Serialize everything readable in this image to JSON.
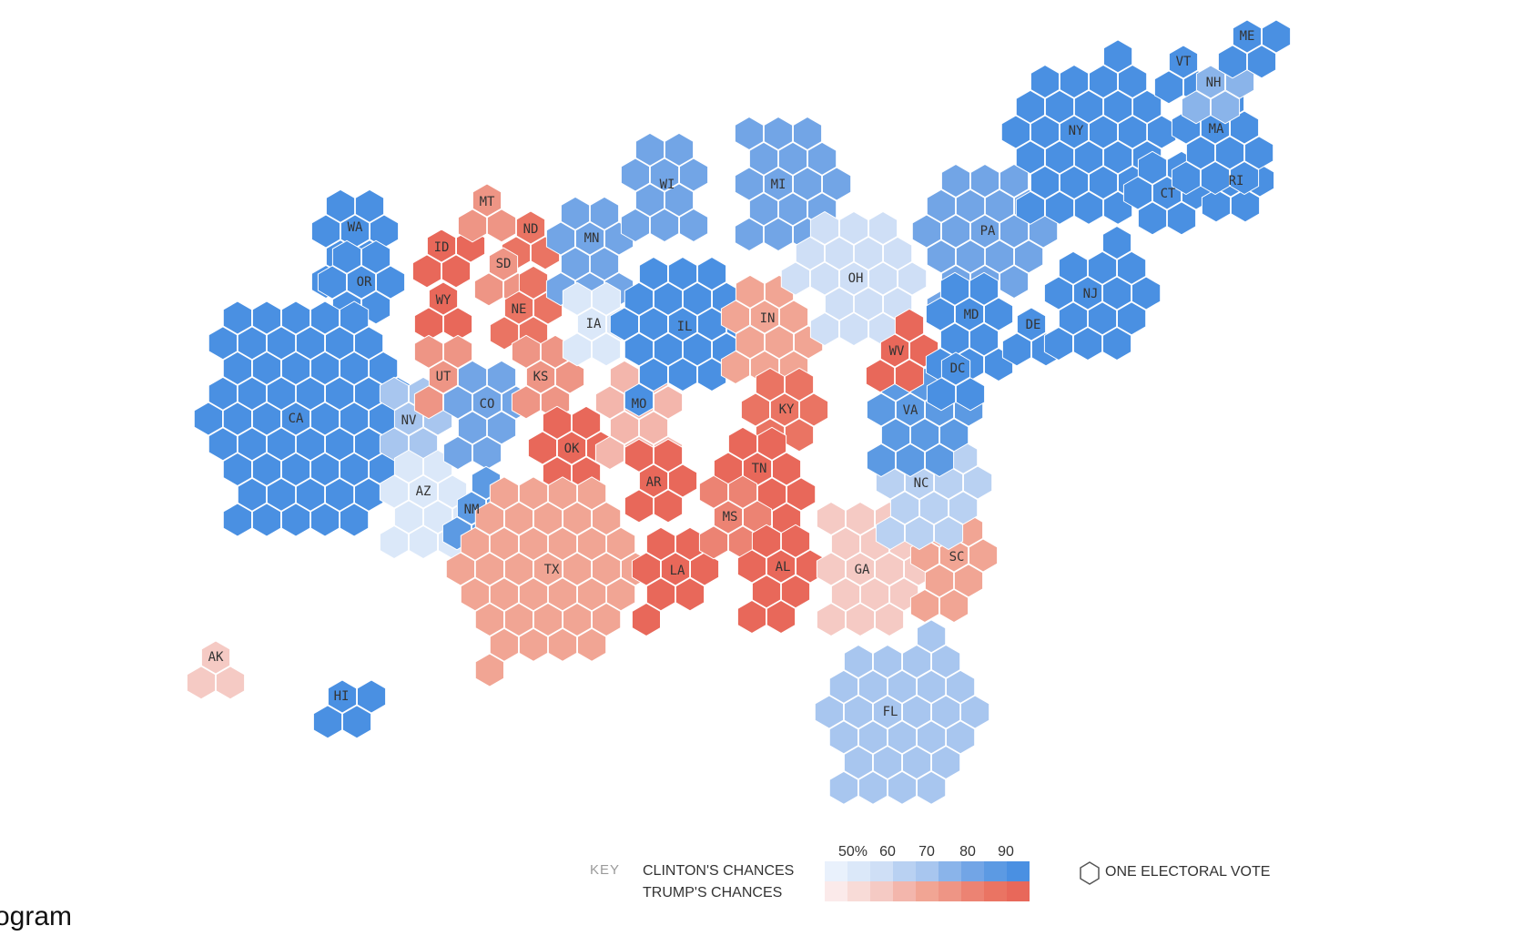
{
  "caption": "ogram",
  "palette": {
    "d": [
      "#e9f1fc",
      "#dbe8f9",
      "#cfdff6",
      "#b9d1f2",
      "#a8c6ef",
      "#8ab4ea",
      "#72a5e6",
      "#5c9ae3",
      "#4a90e2"
    ],
    "r": [
      "#fbeaea",
      "#f8dbd7",
      "#f5cac4",
      "#f3b6ac",
      "#f1a594",
      "#ee9585",
      "#ec8373",
      "#ea7463",
      "#e8685a"
    ]
  },
  "states": [
    {
      "code": "WA",
      "party": "d",
      "level": 8
    },
    {
      "code": "OR",
      "party": "d",
      "level": 8
    },
    {
      "code": "CA",
      "party": "d",
      "level": 8
    },
    {
      "code": "NV",
      "party": "d",
      "level": 4
    },
    {
      "code": "ID",
      "party": "r",
      "level": 8
    },
    {
      "code": "MT",
      "party": "r",
      "level": 5
    },
    {
      "code": "WY",
      "party": "r",
      "level": 8
    },
    {
      "code": "UT",
      "party": "r",
      "level": 5
    },
    {
      "code": "AZ",
      "party": "d",
      "level": 1
    },
    {
      "code": "CO",
      "party": "d",
      "level": 6
    },
    {
      "code": "NM",
      "party": "d",
      "level": 7
    },
    {
      "code": "ND",
      "party": "r",
      "level": 7
    },
    {
      "code": "SD",
      "party": "r",
      "level": 5
    },
    {
      "code": "NE",
      "party": "r",
      "level": 7
    },
    {
      "code": "KS",
      "party": "r",
      "level": 5
    },
    {
      "code": "OK",
      "party": "r",
      "level": 8
    },
    {
      "code": "TX",
      "party": "r",
      "level": 4
    },
    {
      "code": "MN",
      "party": "d",
      "level": 6
    },
    {
      "code": "IA",
      "party": "d",
      "level": 1
    },
    {
      "code": "MO",
      "party": "r",
      "level": 3
    },
    {
      "code": "AR",
      "party": "r",
      "level": 8
    },
    {
      "code": "LA",
      "party": "r",
      "level": 8
    },
    {
      "code": "WI",
      "party": "d",
      "level": 6
    },
    {
      "code": "IL",
      "party": "d",
      "level": 8
    },
    {
      "code": "MI",
      "party": "d",
      "level": 6
    },
    {
      "code": "IN",
      "party": "r",
      "level": 4
    },
    {
      "code": "OH",
      "party": "d",
      "level": 2
    },
    {
      "code": "KY",
      "party": "r",
      "level": 7
    },
    {
      "code": "TN",
      "party": "r",
      "level": 8
    },
    {
      "code": "MS",
      "party": "r",
      "level": 6
    },
    {
      "code": "AL",
      "party": "r",
      "level": 8
    },
    {
      "code": "GA",
      "party": "r",
      "level": 2
    },
    {
      "code": "FL",
      "party": "d",
      "level": 4
    },
    {
      "code": "SC",
      "party": "r",
      "level": 4
    },
    {
      "code": "NC",
      "party": "d",
      "level": 3
    },
    {
      "code": "VA",
      "party": "d",
      "level": 7
    },
    {
      "code": "WV",
      "party": "r",
      "level": 8
    },
    {
      "code": "PA",
      "party": "d",
      "level": 6
    },
    {
      "code": "MD",
      "party": "d",
      "level": 8
    },
    {
      "code": "DE",
      "party": "d",
      "level": 8
    },
    {
      "code": "DC",
      "party": "d",
      "level": 8
    },
    {
      "code": "NJ",
      "party": "d",
      "level": 8
    },
    {
      "code": "NY",
      "party": "d",
      "level": 8
    },
    {
      "code": "CT",
      "party": "d",
      "level": 8
    },
    {
      "code": "RI",
      "party": "d",
      "level": 8
    },
    {
      "code": "MA",
      "party": "d",
      "level": 8
    },
    {
      "code": "VT",
      "party": "d",
      "level": 8
    },
    {
      "code": "NH",
      "party": "d",
      "level": 5
    },
    {
      "code": "ME",
      "party": "d",
      "level": 8
    },
    {
      "code": "AK",
      "party": "r",
      "level": 2
    },
    {
      "code": "HI",
      "party": "d",
      "level": 8
    }
  ],
  "legend": {
    "key_label": "KEY",
    "clinton_label": "CLINTON'S CHANCES",
    "trump_label": "TRUMP'S CHANCES",
    "ticks": [
      "50%",
      "60",
      "70",
      "80",
      "90"
    ],
    "vote_label": "ONE ELECTORAL VOTE"
  }
}
